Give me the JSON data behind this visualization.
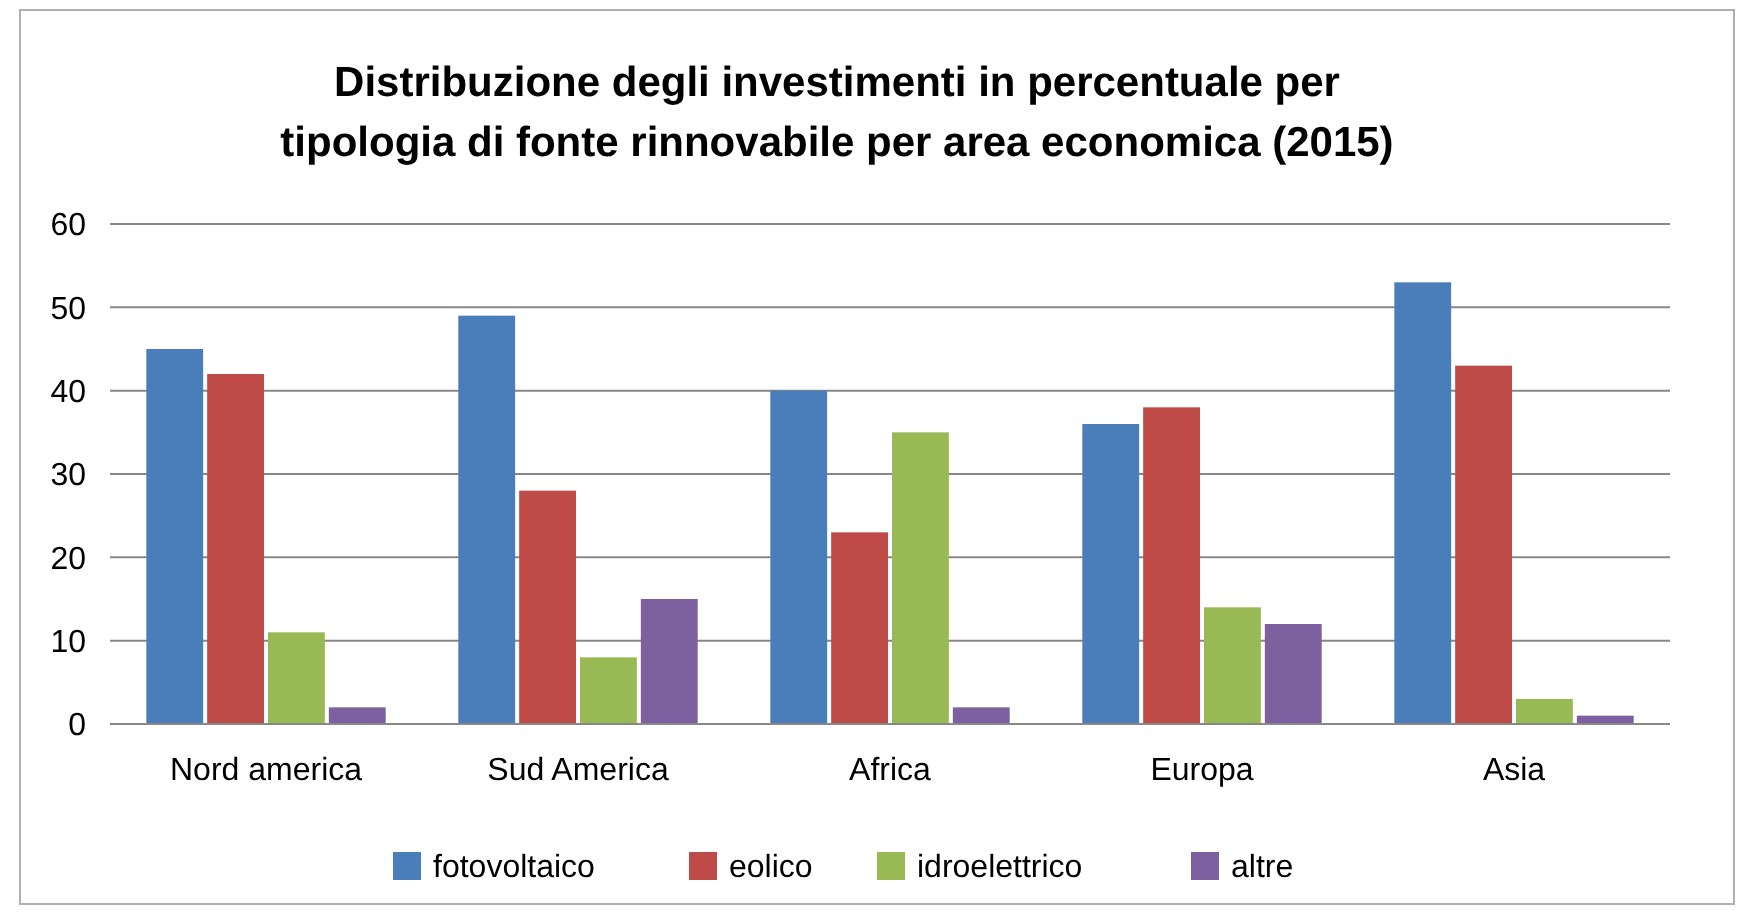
{
  "chart_data": {
    "type": "bar",
    "title": "Distribuzione degli investimenti in percentuale per\ntipologia di fonte rinnovabile per area economica (2015)",
    "categories": [
      "Nord america",
      "Sud America",
      "Africa",
      "Europa",
      "Asia"
    ],
    "series": [
      {
        "name": "fotovoltaico",
        "color": "#4a7ebb",
        "values": [
          45,
          49,
          40,
          36,
          53
        ]
      },
      {
        "name": "eolico",
        "color": "#be4b48",
        "values": [
          42,
          28,
          23,
          38,
          43
        ]
      },
      {
        "name": "idroelettrico",
        "color": "#98b954",
        "values": [
          11,
          8,
          35,
          14,
          3
        ]
      },
      {
        "name": "altre",
        "color": "#7d60a0",
        "values": [
          2,
          15,
          2,
          12,
          1
        ]
      }
    ],
    "ylim": [
      0,
      60
    ],
    "yticks": [
      0,
      10,
      20,
      30,
      40,
      50,
      60
    ],
    "grid": "y",
    "legend": "bottom"
  }
}
